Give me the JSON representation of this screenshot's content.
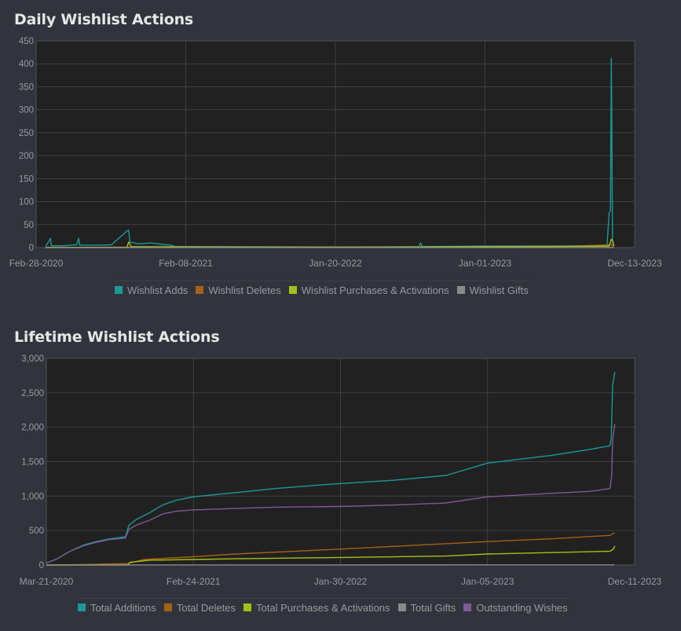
{
  "chart_data": [
    {
      "type": "line",
      "title": "Daily Wishlist Actions",
      "x_ticks": [
        "Feb-28-2020",
        "Feb-08-2021",
        "Jan-20-2022",
        "Jan-01-2023",
        "Dec-13-2023"
      ],
      "y_ticks": [
        "0",
        "50",
        "100",
        "150",
        "200",
        "250",
        "300",
        "350",
        "400",
        "450"
      ],
      "ylim": [
        0,
        450
      ],
      "grid": true,
      "legend_position": "bottom",
      "series": [
        {
          "name": "Wishlist Adds",
          "color": "#1a9a96",
          "points": [
            [
              "2020-03-21",
              2
            ],
            [
              "2020-04-01",
              20
            ],
            [
              "2020-04-03",
              4
            ],
            [
              "2020-05-01",
              4
            ],
            [
              "2020-06-01",
              6
            ],
            [
              "2020-06-05",
              20
            ],
            [
              "2020-06-08",
              5
            ],
            [
              "2020-07-15",
              5
            ],
            [
              "2020-08-20",
              6
            ],
            [
              "2020-09-25",
              36
            ],
            [
              "2020-09-29",
              38
            ],
            [
              "2020-10-02",
              12
            ],
            [
              "2020-10-20",
              8
            ],
            [
              "2020-11-20",
              10
            ],
            [
              "2020-12-15",
              7
            ],
            [
              "2021-01-05",
              5
            ],
            [
              "2021-01-15",
              2
            ],
            [
              "2021-06-01",
              2
            ],
            [
              "2022-01-01",
              1
            ],
            [
              "2022-08-01",
              2
            ],
            [
              "2022-08-05",
              10
            ],
            [
              "2022-08-09",
              2
            ],
            [
              "2023-01-01",
              3
            ],
            [
              "2023-06-01",
              3
            ],
            [
              "2023-10-10",
              4
            ],
            [
              "2023-10-15",
              75
            ],
            [
              "2023-10-18",
              80
            ],
            [
              "2023-10-20",
              412
            ],
            [
              "2023-10-23",
              10
            ],
            [
              "2023-10-26",
              5
            ]
          ]
        },
        {
          "name": "Wishlist Deletes",
          "color": "#a36216",
          "points": [
            [
              "2020-03-21",
              0
            ],
            [
              "2020-10-01",
              1
            ],
            [
              "2021-06-01",
              1
            ],
            [
              "2022-06-01",
              1
            ],
            [
              "2023-06-01",
              1
            ],
            [
              "2023-10-20",
              6
            ],
            [
              "2023-10-26",
              2
            ]
          ]
        },
        {
          "name": "Wishlist Purchases & Activations",
          "color": "#a4c012",
          "points": [
            [
              "2020-03-21",
              0
            ],
            [
              "2020-09-25",
              0
            ],
            [
              "2020-09-29",
              12
            ],
            [
              "2020-10-05",
              2
            ],
            [
              "2021-06-01",
              1
            ],
            [
              "2022-06-01",
              1
            ],
            [
              "2023-01-01",
              2
            ],
            [
              "2023-10-15",
              3
            ],
            [
              "2023-10-20",
              18
            ],
            [
              "2023-10-23",
              15
            ],
            [
              "2023-10-26",
              3
            ]
          ]
        },
        {
          "name": "Wishlist Gifts",
          "color": "#8a8a8a",
          "points": [
            [
              "2020-03-21",
              0
            ],
            [
              "2023-10-26",
              0
            ]
          ]
        }
      ]
    },
    {
      "type": "line",
      "title": "Lifetime Wishlist Actions",
      "x_ticks": [
        "Mar-21-2020",
        "Feb-24-2021",
        "Jan-30-2022",
        "Jan-05-2023",
        "Dec-11-2023"
      ],
      "y_ticks": [
        "0",
        "500",
        "1,000",
        "1,500",
        "2,000",
        "2,500",
        "3,000"
      ],
      "ylim": [
        0,
        3000
      ],
      "grid": true,
      "legend_position": "bottom",
      "series": [
        {
          "name": "Total Additions",
          "color": "#1a9a96",
          "points": [
            [
              "2020-03-21",
              30
            ],
            [
              "2020-04-15",
              90
            ],
            [
              "2020-05-15",
              200
            ],
            [
              "2020-06-15",
              290
            ],
            [
              "2020-07-15",
              340
            ],
            [
              "2020-08-15",
              380
            ],
            [
              "2020-09-20",
              410
            ],
            [
              "2020-09-28",
              580
            ],
            [
              "2020-10-15",
              660
            ],
            [
              "2020-11-15",
              760
            ],
            [
              "2020-12-15",
              870
            ],
            [
              "2021-01-15",
              940
            ],
            [
              "2021-02-24",
              990
            ],
            [
              "2021-06-01",
              1050
            ],
            [
              "2021-09-01",
              1110
            ],
            [
              "2022-01-01",
              1170
            ],
            [
              "2022-06-01",
              1230
            ],
            [
              "2022-10-01",
              1300
            ],
            [
              "2023-01-05",
              1480
            ],
            [
              "2023-06-01",
              1590
            ],
            [
              "2023-09-01",
              1680
            ],
            [
              "2023-10-15",
              1730
            ],
            [
              "2023-10-18",
              1850
            ],
            [
              "2023-10-21",
              2600
            ],
            [
              "2023-10-26",
              2800
            ]
          ]
        },
        {
          "name": "Total Deletes",
          "color": "#a36216",
          "points": [
            [
              "2020-03-21",
              0
            ],
            [
              "2020-06-01",
              5
            ],
            [
              "2020-09-25",
              20
            ],
            [
              "2020-11-01",
              80
            ],
            [
              "2021-02-24",
              120
            ],
            [
              "2021-06-01",
              160
            ],
            [
              "2022-01-30",
              230
            ],
            [
              "2022-06-01",
              270
            ],
            [
              "2023-01-05",
              340
            ],
            [
              "2023-06-01",
              380
            ],
            [
              "2023-10-15",
              430
            ],
            [
              "2023-10-26",
              470
            ]
          ]
        },
        {
          "name": "Total Purchases & Activations",
          "color": "#a4c012",
          "points": [
            [
              "2020-03-21",
              0
            ],
            [
              "2020-09-25",
              0
            ],
            [
              "2020-10-01",
              40
            ],
            [
              "2020-11-15",
              70
            ],
            [
              "2021-02-24",
              80
            ],
            [
              "2021-06-01",
              90
            ],
            [
              "2022-01-30",
              110
            ],
            [
              "2022-10-01",
              130
            ],
            [
              "2023-01-05",
              160
            ],
            [
              "2023-06-01",
              180
            ],
            [
              "2023-10-15",
              200
            ],
            [
              "2023-10-23",
              230
            ],
            [
              "2023-10-26",
              275
            ]
          ]
        },
        {
          "name": "Total Gifts",
          "color": "#8a8a8a",
          "points": [
            [
              "2020-03-21",
              0
            ],
            [
              "2023-10-26",
              2
            ]
          ]
        },
        {
          "name": "Outstanding Wishes",
          "color": "#7d5a99",
          "points": [
            [
              "2020-03-21",
              30
            ],
            [
              "2020-04-15",
              90
            ],
            [
              "2020-05-15",
              200
            ],
            [
              "2020-06-15",
              280
            ],
            [
              "2020-07-15",
              330
            ],
            [
              "2020-08-15",
              370
            ],
            [
              "2020-09-20",
              390
            ],
            [
              "2020-09-28",
              520
            ],
            [
              "2020-10-15",
              580
            ],
            [
              "2020-11-15",
              650
            ],
            [
              "2020-12-15",
              740
            ],
            [
              "2021-01-15",
              780
            ],
            [
              "2021-02-24",
              800
            ],
            [
              "2021-06-01",
              820
            ],
            [
              "2021-09-01",
              840
            ],
            [
              "2022-01-30",
              850
            ],
            [
              "2022-06-01",
              870
            ],
            [
              "2022-10-01",
              900
            ],
            [
              "2023-01-05",
              990
            ],
            [
              "2023-06-01",
              1040
            ],
            [
              "2023-09-01",
              1070
            ],
            [
              "2023-10-15",
              1110
            ],
            [
              "2023-10-19",
              1300
            ],
            [
              "2023-10-21",
              1800
            ],
            [
              "2023-10-26",
              2050
            ]
          ]
        }
      ]
    }
  ]
}
